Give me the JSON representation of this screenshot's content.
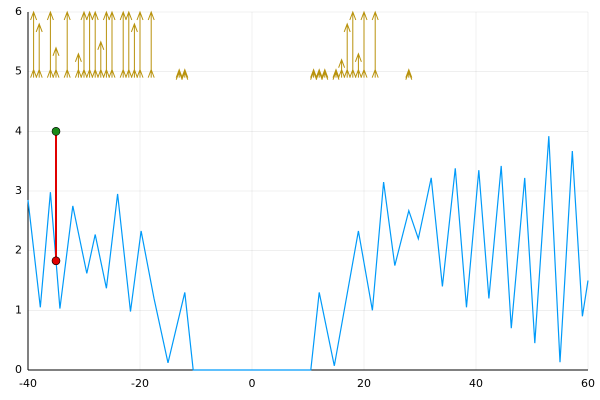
{
  "chart_data": {
    "type": "line",
    "xlim": [
      -40,
      60
    ],
    "ylim": [
      0,
      6
    ],
    "xticks": [
      -40,
      -20,
      0,
      20,
      40,
      60
    ],
    "yticks": [
      0,
      1,
      2,
      3,
      4,
      5,
      6
    ],
    "grid": true,
    "series": [
      {
        "color": "#009af9",
        "x": [
          -40,
          -37.8,
          -36,
          -34.3,
          -32,
          -29.5,
          -28,
          -26,
          -24,
          -21.7,
          -19.8,
          -17.5,
          -15,
          -12,
          -10.5,
          10.5,
          12,
          14.7,
          19,
          21.5,
          23.5,
          25.5,
          28,
          29.7,
          32,
          34,
          36.3,
          38.3,
          40.5,
          42.3,
          44.5,
          46.3,
          48.7,
          50.5,
          53,
          55,
          57.2,
          59,
          60
        ],
        "values": [
          2.85,
          1.05,
          2.98,
          1.03,
          2.75,
          1.62,
          2.27,
          1.37,
          2.95,
          0.98,
          2.33,
          1.2,
          0.12,
          1.3,
          0,
          0,
          1.3,
          0.07,
          2.33,
          1.0,
          3.15,
          1.75,
          2.67,
          2.2,
          3.22,
          1.4,
          3.38,
          1.05,
          3.35,
          1.2,
          3.42,
          0.7,
          3.22,
          0.45,
          3.92,
          0.13,
          3.67,
          0.9,
          1.5
        ]
      }
    ],
    "segment": {
      "color": "#e00000",
      "x": [
        -35,
        -35
      ],
      "values": [
        1.83,
        4
      ]
    },
    "points": [
      {
        "x": -35,
        "y": 4,
        "color": "#1a8a1a"
      },
      {
        "x": -35,
        "y": 1.83,
        "color": "#e00000"
      }
    ],
    "arrows": {
      "color": "#b8920c",
      "base": 4.9,
      "x": [
        -39,
        -38,
        -36,
        -35,
        -33,
        -31,
        -30,
        -29,
        -28,
        -27,
        -26,
        -25,
        -23,
        -22,
        -21,
        -20,
        -18,
        -13,
        -12,
        11,
        12,
        13,
        15,
        16,
        17,
        18,
        19,
        20,
        22,
        28
      ],
      "tips": [
        6,
        5.8,
        6,
        5.4,
        6,
        5.3,
        6,
        6,
        6,
        5.5,
        6,
        6,
        6,
        6,
        5.8,
        6,
        6,
        5,
        5,
        5,
        5,
        5,
        5,
        5.2,
        5.8,
        6,
        5.3,
        6,
        6,
        5
      ]
    }
  }
}
